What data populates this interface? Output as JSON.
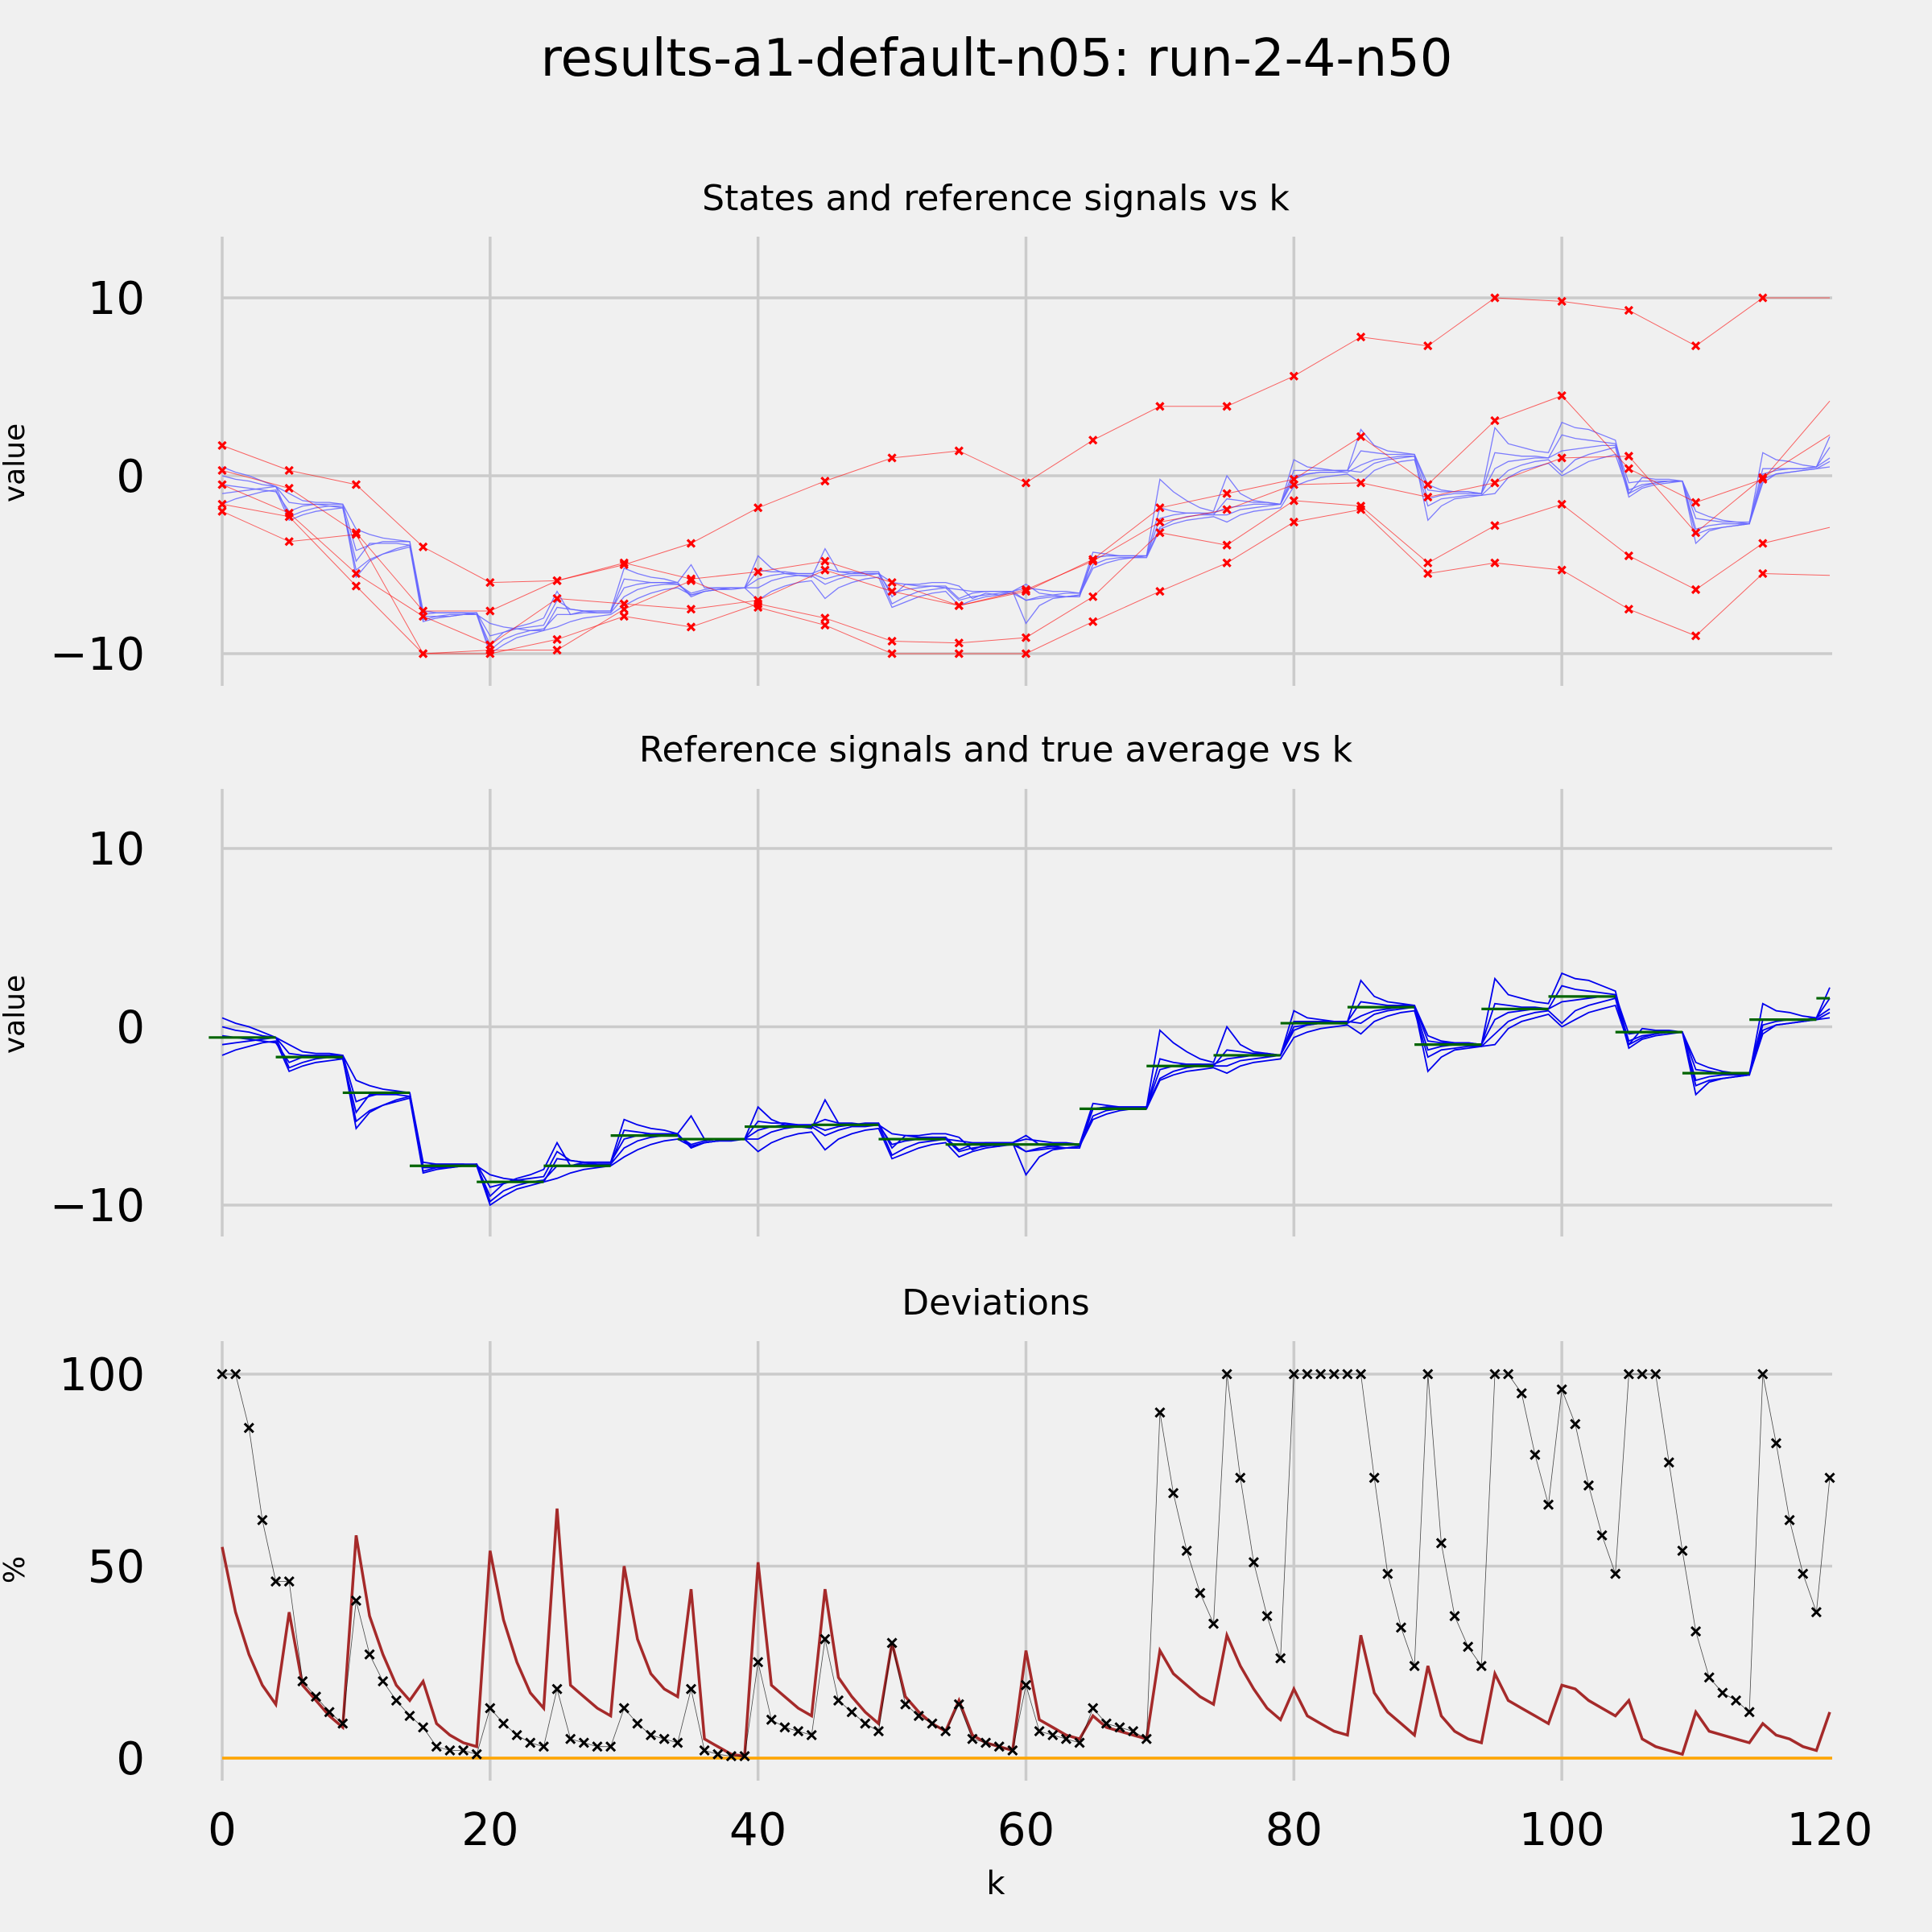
{
  "title": "results-a1-default-n05: run-2-4-n50",
  "colors": {
    "background": "#f0f0f0",
    "grid": "#cbcbcb",
    "state_lines": "#ff0000",
    "state_markers": "#ff0000",
    "reference_lines_top": "#6666ff",
    "reference_lines": "#0000ee",
    "true_average": "#006400",
    "deviation_max": "#000000",
    "deviation_mean": "#a52a2a",
    "zero_line": "#ffa500"
  },
  "chart_data": [
    {
      "type": "line",
      "title": "States and reference signals vs k",
      "xlabel": "",
      "ylabel": "value",
      "xlim": [
        -4,
        120
      ],
      "ylim": [
        -12,
        13
      ],
      "xticks": [
        0,
        20,
        40,
        60,
        80,
        100,
        120
      ],
      "yticks": [
        -10,
        0,
        10
      ],
      "ytick_labels": [
        "−10",
        "0",
        "10"
      ],
      "xtick_labels_shown": false,
      "grid": true,
      "state_sample_k": [
        0,
        5,
        10,
        15,
        20,
        25,
        30,
        35,
        40,
        45,
        50,
        55,
        60,
        65,
        70,
        75,
        80,
        85,
        90,
        95,
        100,
        105,
        110,
        115
      ],
      "states": [
        {
          "values": [
            1.7,
            0.3,
            -0.5,
            -4.0,
            -6.0,
            -5.9,
            -5.0,
            -3.8,
            -1.8,
            -0.3,
            1.0,
            1.4,
            -0.4,
            2.0,
            3.9,
            3.9,
            5.6,
            7.8,
            7.3,
            10.0,
            9.8,
            9.3,
            7.3,
            10.0
          ],
          "end": 10.0
        },
        {
          "values": [
            0.3,
            -0.7,
            -3.2,
            -7.6,
            -7.6,
            -5.9,
            -4.9,
            -5.8,
            -5.4,
            -4.8,
            -6.0,
            -7.3,
            -6.5,
            -4.7,
            -1.8,
            -1.0,
            -0.2,
            2.2,
            -0.5,
            3.1,
            4.5,
            0.4,
            -1.5,
            -0.2
          ],
          "end": 4.2
        },
        {
          "values": [
            -0.5,
            -2.1,
            -5.5,
            -7.9,
            -9.5,
            -6.9,
            -7.2,
            -7.5,
            -7.0,
            -5.3,
            -6.5,
            -7.3,
            -6.4,
            -4.8,
            -2.6,
            -1.9,
            -0.5,
            -0.4,
            -1.2,
            -0.4,
            1.0,
            1.1,
            -3.2,
            -0.1
          ],
          "end": 2.3
        },
        {
          "values": [
            -1.6,
            -2.3,
            -6.2,
            -10.0,
            -10.0,
            -9.2,
            -7.9,
            -8.5,
            -7.2,
            -8.0,
            -9.3,
            -9.4,
            -9.1,
            -6.8,
            -3.2,
            -3.9,
            -1.4,
            -1.7,
            -4.9,
            -2.8,
            -1.6,
            -4.5,
            -6.4,
            -3.8
          ],
          "end": -2.9
        },
        {
          "values": [
            -2.0,
            -3.7,
            -3.3,
            -10.0,
            -9.8,
            -9.8,
            -7.5,
            -5.9,
            -7.4,
            -8.4,
            -10.0,
            -10.0,
            -10.0,
            -8.2,
            -6.5,
            -4.9,
            -2.6,
            -1.9,
            -5.5,
            -4.9,
            -5.3,
            -7.5,
            -9.0,
            -5.5
          ],
          "end": -5.6
        }
      ],
      "reference_signals": [
        [
          0.5,
          0.2,
          0.0,
          -0.3,
          -0.6,
          -1.5,
          -1.6,
          -1.6,
          -1.7,
          -1.8,
          -4.8,
          -3.8,
          -3.8,
          -3.8,
          -3.9,
          -7.9,
          -7.9,
          -7.9,
          -7.8,
          -7.8,
          -9.5,
          -8.8,
          -8.5,
          -8.3,
          -8.0,
          -6.5,
          -7.8,
          -7.6,
          -7.6,
          -7.6,
          -5.2,
          -5.5,
          -5.7,
          -5.8,
          -6.0,
          -5.0,
          -6.3,
          -6.3,
          -6.3,
          -6.3,
          -4.5,
          -5.2,
          -5.5,
          -5.6,
          -5.7,
          -4.1,
          -5.4,
          -5.5,
          -5.4,
          -5.4,
          -6.8,
          -6.1,
          -6.1,
          -6.0,
          -6.0,
          -6.2,
          -6.9,
          -6.6,
          -6.7,
          -6.5,
          -6.1,
          -6.6,
          -6.7,
          -6.8,
          -6.8,
          -4.6,
          -4.5,
          -4.5,
          -4.5,
          -4.5,
          -0.2,
          -0.9,
          -1.4,
          -1.8,
          -2.0,
          0.0,
          -1.0,
          -1.4,
          -1.5,
          -1.6,
          0.9,
          0.5,
          0.4,
          0.3,
          0.3,
          2.6,
          1.7,
          1.4,
          1.3,
          1.2,
          -0.5,
          -0.8,
          -0.9,
          -0.9,
          -1.0,
          2.7,
          1.8,
          1.6,
          1.4,
          1.3,
          3.0,
          2.7,
          2.6,
          2.3,
          2.0,
          -1.0,
          -0.1,
          -0.2,
          -0.2,
          -0.3,
          -2.0,
          -2.3,
          -2.5,
          -2.6,
          -2.7,
          1.3,
          0.9,
          0.8,
          0.6,
          0.5,
          2.2
        ],
        [
          0.0,
          -0.2,
          -0.3,
          -0.5,
          -0.6,
          -1.0,
          -1.4,
          -1.5,
          -1.5,
          -1.6,
          -3.0,
          -3.3,
          -3.5,
          -3.6,
          -3.7,
          -7.6,
          -7.7,
          -7.7,
          -7.7,
          -7.8,
          -8.3,
          -8.5,
          -8.6,
          -8.7,
          -8.7,
          -7.4,
          -7.5,
          -7.6,
          -7.7,
          -7.7,
          -5.8,
          -5.9,
          -6.0,
          -6.0,
          -6.1,
          -6.6,
          -6.4,
          -6.3,
          -6.3,
          -6.3,
          -5.3,
          -5.4,
          -5.4,
          -5.5,
          -5.5,
          -5.2,
          -5.4,
          -5.4,
          -5.5,
          -5.5,
          -6.0,
          -6.1,
          -6.2,
          -6.2,
          -6.3,
          -6.4,
          -6.5,
          -6.5,
          -6.5,
          -6.5,
          -6.3,
          -6.4,
          -6.5,
          -6.5,
          -6.6,
          -4.3,
          -4.4,
          -4.5,
          -4.5,
          -4.5,
          -1.8,
          -2.0,
          -2.1,
          -2.1,
          -2.2,
          -1.3,
          -1.4,
          -1.5,
          -1.5,
          -1.6,
          0.3,
          0.3,
          0.3,
          0.3,
          0.3,
          1.4,
          1.3,
          1.2,
          1.2,
          1.2,
          -0.8,
          -0.9,
          -0.9,
          -0.9,
          -1.0,
          1.3,
          1.2,
          1.1,
          1.1,
          1.0,
          2.3,
          2.1,
          2.0,
          1.9,
          1.8,
          -0.4,
          -0.3,
          -0.3,
          -0.3,
          -0.3,
          -2.4,
          -2.5,
          -2.6,
          -2.6,
          -2.6,
          0.4,
          0.4,
          0.4,
          0.4,
          0.5,
          1.6
        ],
        [
          -0.5,
          -0.6,
          -0.7,
          -0.8,
          -0.9,
          -2.0,
          -1.7,
          -1.6,
          -1.6,
          -1.6,
          -4.2,
          -3.9,
          -3.7,
          -3.7,
          -3.7,
          -7.8,
          -7.7,
          -7.7,
          -7.7,
          -7.7,
          -9.0,
          -8.8,
          -8.6,
          -8.5,
          -8.4,
          -7.0,
          -7.5,
          -7.6,
          -7.6,
          -7.6,
          -6.3,
          -6.1,
          -6.0,
          -6.0,
          -6.0,
          -6.8,
          -6.5,
          -6.4,
          -6.3,
          -6.3,
          -5.8,
          -5.6,
          -5.5,
          -5.5,
          -5.5,
          -5.8,
          -5.6,
          -5.5,
          -5.5,
          -5.5,
          -6.6,
          -6.4,
          -6.3,
          -6.2,
          -6.2,
          -6.9,
          -6.6,
          -6.5,
          -6.5,
          -6.5,
          -7.0,
          -6.8,
          -6.7,
          -6.6,
          -6.6,
          -4.6,
          -4.5,
          -4.5,
          -4.5,
          -4.5,
          -2.4,
          -2.2,
          -2.1,
          -2.1,
          -2.1,
          -1.8,
          -1.7,
          -1.6,
          -1.6,
          -1.6,
          0.0,
          0.1,
          0.2,
          0.2,
          0.2,
          0.6,
          0.9,
          1.0,
          1.1,
          1.1,
          -1.3,
          -1.1,
          -1.0,
          -1.0,
          -1.0,
          0.4,
          0.8,
          0.9,
          1.0,
          1.0,
          1.4,
          1.5,
          1.6,
          1.7,
          1.7,
          -0.8,
          -0.5,
          -0.4,
          -0.3,
          -0.3,
          -3.0,
          -2.8,
          -2.7,
          -2.7,
          -2.7,
          0.1,
          0.3,
          0.4,
          0.4,
          0.5,
          1.0
        ],
        [
          -1.0,
          -0.9,
          -0.8,
          -0.7,
          -0.6,
          -2.3,
          -2.0,
          -1.8,
          -1.7,
          -1.7,
          -5.7,
          -4.8,
          -4.4,
          -4.1,
          -3.9,
          -8.1,
          -7.9,
          -7.8,
          -7.8,
          -7.7,
          -9.8,
          -9.2,
          -8.9,
          -8.7,
          -8.6,
          -7.8,
          -7.8,
          -7.7,
          -7.7,
          -7.7,
          -6.8,
          -6.4,
          -6.2,
          -6.1,
          -6.1,
          -6.7,
          -6.5,
          -6.4,
          -6.3,
          -6.3,
          -6.3,
          -5.9,
          -5.7,
          -5.6,
          -5.6,
          -6.1,
          -5.8,
          -5.6,
          -5.6,
          -5.5,
          -7.2,
          -6.8,
          -6.5,
          -6.4,
          -6.3,
          -7.0,
          -6.8,
          -6.7,
          -6.6,
          -6.5,
          -8.3,
          -7.3,
          -6.9,
          -6.8,
          -6.7,
          -5.0,
          -4.7,
          -4.6,
          -4.6,
          -4.5,
          -2.9,
          -2.5,
          -2.3,
          -2.2,
          -2.2,
          -2.2,
          -1.9,
          -1.8,
          -1.7,
          -1.6,
          -0.2,
          0.1,
          0.2,
          0.2,
          0.3,
          0.2,
          0.7,
          0.9,
          1.0,
          1.1,
          -2.5,
          -1.7,
          -1.3,
          -1.2,
          -1.1,
          -0.4,
          0.3,
          0.6,
          0.8,
          0.9,
          0.2,
          0.9,
          1.2,
          1.4,
          1.6,
          -1.2,
          -0.7,
          -0.5,
          -0.4,
          -0.3,
          -3.8,
          -3.1,
          -2.9,
          -2.8,
          -2.7,
          -0.4,
          0.1,
          0.2,
          0.3,
          0.4,
          0.8
        ],
        [
          -1.6,
          -1.3,
          -1.1,
          -0.9,
          -0.8,
          -2.5,
          -2.2,
          -2.0,
          -1.9,
          -1.8,
          -5.3,
          -4.7,
          -4.4,
          -4.2,
          -4.0,
          -8.2,
          -8.0,
          -7.9,
          -7.8,
          -7.8,
          -10.0,
          -9.5,
          -9.1,
          -8.9,
          -8.7,
          -8.5,
          -8.2,
          -8.0,
          -7.9,
          -7.8,
          -7.3,
          -6.9,
          -6.6,
          -6.4,
          -6.3,
          -6.7,
          -6.5,
          -6.4,
          -6.4,
          -6.3,
          -7.0,
          -6.5,
          -6.2,
          -6.0,
          -5.9,
          -6.9,
          -6.3,
          -6.0,
          -5.8,
          -5.7,
          -7.4,
          -7.1,
          -6.8,
          -6.6,
          -6.5,
          -7.3,
          -7.0,
          -6.8,
          -6.7,
          -6.6,
          -7.0,
          -6.9,
          -6.8,
          -6.8,
          -6.7,
          -5.2,
          -4.9,
          -4.7,
          -4.6,
          -4.6,
          -3.0,
          -2.7,
          -2.5,
          -2.4,
          -2.3,
          -2.6,
          -2.2,
          -2.0,
          -1.9,
          -1.8,
          -0.6,
          -0.3,
          -0.1,
          0.0,
          0.1,
          -0.4,
          0.3,
          0.6,
          0.8,
          0.9,
          -1.7,
          -1.3,
          -1.2,
          -1.1,
          -1.1,
          -1.0,
          -0.1,
          0.3,
          0.5,
          0.7,
          0.0,
          0.4,
          0.8,
          1.0,
          1.2,
          -1.0,
          -0.6,
          -0.4,
          -0.3,
          -0.3,
          -3.3,
          -3.0,
          -2.9,
          -2.8,
          -2.7,
          -0.2,
          0.1,
          0.2,
          0.3,
          0.4,
          0.5
        ]
      ]
    },
    {
      "type": "line",
      "title": "Reference signals and true average vs k",
      "xlabel": "",
      "ylabel": "value",
      "xlim": [
        -4,
        120
      ],
      "ylim": [
        -12,
        13
      ],
      "xticks": [
        0,
        20,
        40,
        60,
        80,
        100,
        120
      ],
      "yticks": [
        -10,
        0,
        10
      ],
      "ytick_labels": [
        "−10",
        "0",
        "10"
      ],
      "xtick_labels_shown": false,
      "grid": true,
      "true_average": {
        "segments_start_k": [
          -1,
          4,
          9,
          14,
          19,
          24,
          29,
          34,
          39,
          44,
          49,
          54,
          59,
          64,
          69,
          74,
          79,
          84,
          89,
          94,
          99,
          104,
          109,
          114,
          119
        ],
        "values": [
          -0.6,
          -1.7,
          -3.7,
          -7.8,
          -8.7,
          -7.8,
          -6.1,
          -6.3,
          -5.6,
          -5.5,
          -6.3,
          -6.6,
          -6.6,
          -4.6,
          -2.2,
          -1.6,
          0.2,
          1.1,
          -1.0,
          1.0,
          1.7,
          -0.3,
          -2.6,
          0.4,
          1.6
        ]
      },
      "reference_signals_ref": "same as panel 1"
    },
    {
      "type": "line",
      "title": "Deviations",
      "xlabel": "k",
      "ylabel": "%",
      "xlim": [
        -4,
        120
      ],
      "ylim": [
        -5,
        110
      ],
      "xticks": [
        0,
        20,
        40,
        60,
        80,
        100,
        120
      ],
      "xtick_labels": [
        "0",
        "20",
        "40",
        "60",
        "80",
        "100",
        "120"
      ],
      "yticks": [
        0,
        50,
        100
      ],
      "ytick_labels": [
        "0",
        "50",
        "100"
      ],
      "grid": true,
      "series": [
        {
          "role": "max",
          "marker": "x",
          "values": [
            100,
            100,
            86,
            62,
            46,
            46,
            20,
            16,
            12,
            9,
            41,
            27,
            20,
            15,
            11,
            8,
            3,
            2,
            2,
            1,
            13,
            9,
            6,
            4,
            3,
            18,
            5,
            4,
            3,
            3,
            13,
            9,
            6,
            5,
            4,
            18,
            2,
            1,
            0.5,
            0.5,
            25,
            10,
            8,
            7,
            6,
            31,
            15,
            12,
            9,
            7,
            30,
            14,
            11,
            9,
            7,
            14,
            5,
            4,
            3,
            2,
            19,
            7,
            6,
            5,
            4,
            13,
            9,
            8,
            7,
            5,
            90,
            69,
            54,
            43,
            35,
            100,
            73,
            51,
            37,
            26,
            100,
            100,
            100,
            100,
            100,
            100,
            73,
            48,
            34,
            24,
            100,
            56,
            37,
            29,
            24,
            100,
            100,
            95,
            79,
            66,
            96,
            87,
            71,
            58,
            48,
            100,
            100,
            100,
            77,
            54,
            33,
            21,
            17,
            15,
            12,
            100,
            82,
            62,
            48,
            38,
            73
          ]
        },
        {
          "role": "mean",
          "values": [
            55,
            38,
            27,
            19,
            14,
            38,
            19,
            15,
            11,
            8,
            58,
            37,
            27,
            19,
            15,
            20,
            9,
            6,
            4,
            3,
            54,
            36,
            25,
            17,
            13,
            65,
            19,
            16,
            13,
            11,
            50,
            31,
            22,
            18,
            16,
            44,
            5,
            3,
            1,
            0.5,
            51,
            19,
            16,
            13,
            11,
            44,
            21,
            16,
            12,
            9,
            30,
            16,
            12,
            9,
            7,
            15,
            6,
            4,
            3,
            2,
            28,
            10,
            8,
            6,
            5,
            11,
            8,
            7,
            6,
            5,
            28,
            22,
            19,
            16,
            14,
            32,
            24,
            18,
            13,
            10,
            18,
            11,
            9,
            7,
            6,
            32,
            17,
            12,
            9,
            6,
            24,
            11,
            7,
            5,
            4,
            22,
            15,
            13,
            11,
            9,
            19,
            18,
            15,
            13,
            11,
            15,
            5,
            3,
            2,
            1,
            12,
            7,
            6,
            5,
            4,
            9,
            6,
            5,
            3,
            2,
            12
          ]
        },
        {
          "role": "zero",
          "values": [
            0
          ]
        }
      ]
    }
  ]
}
